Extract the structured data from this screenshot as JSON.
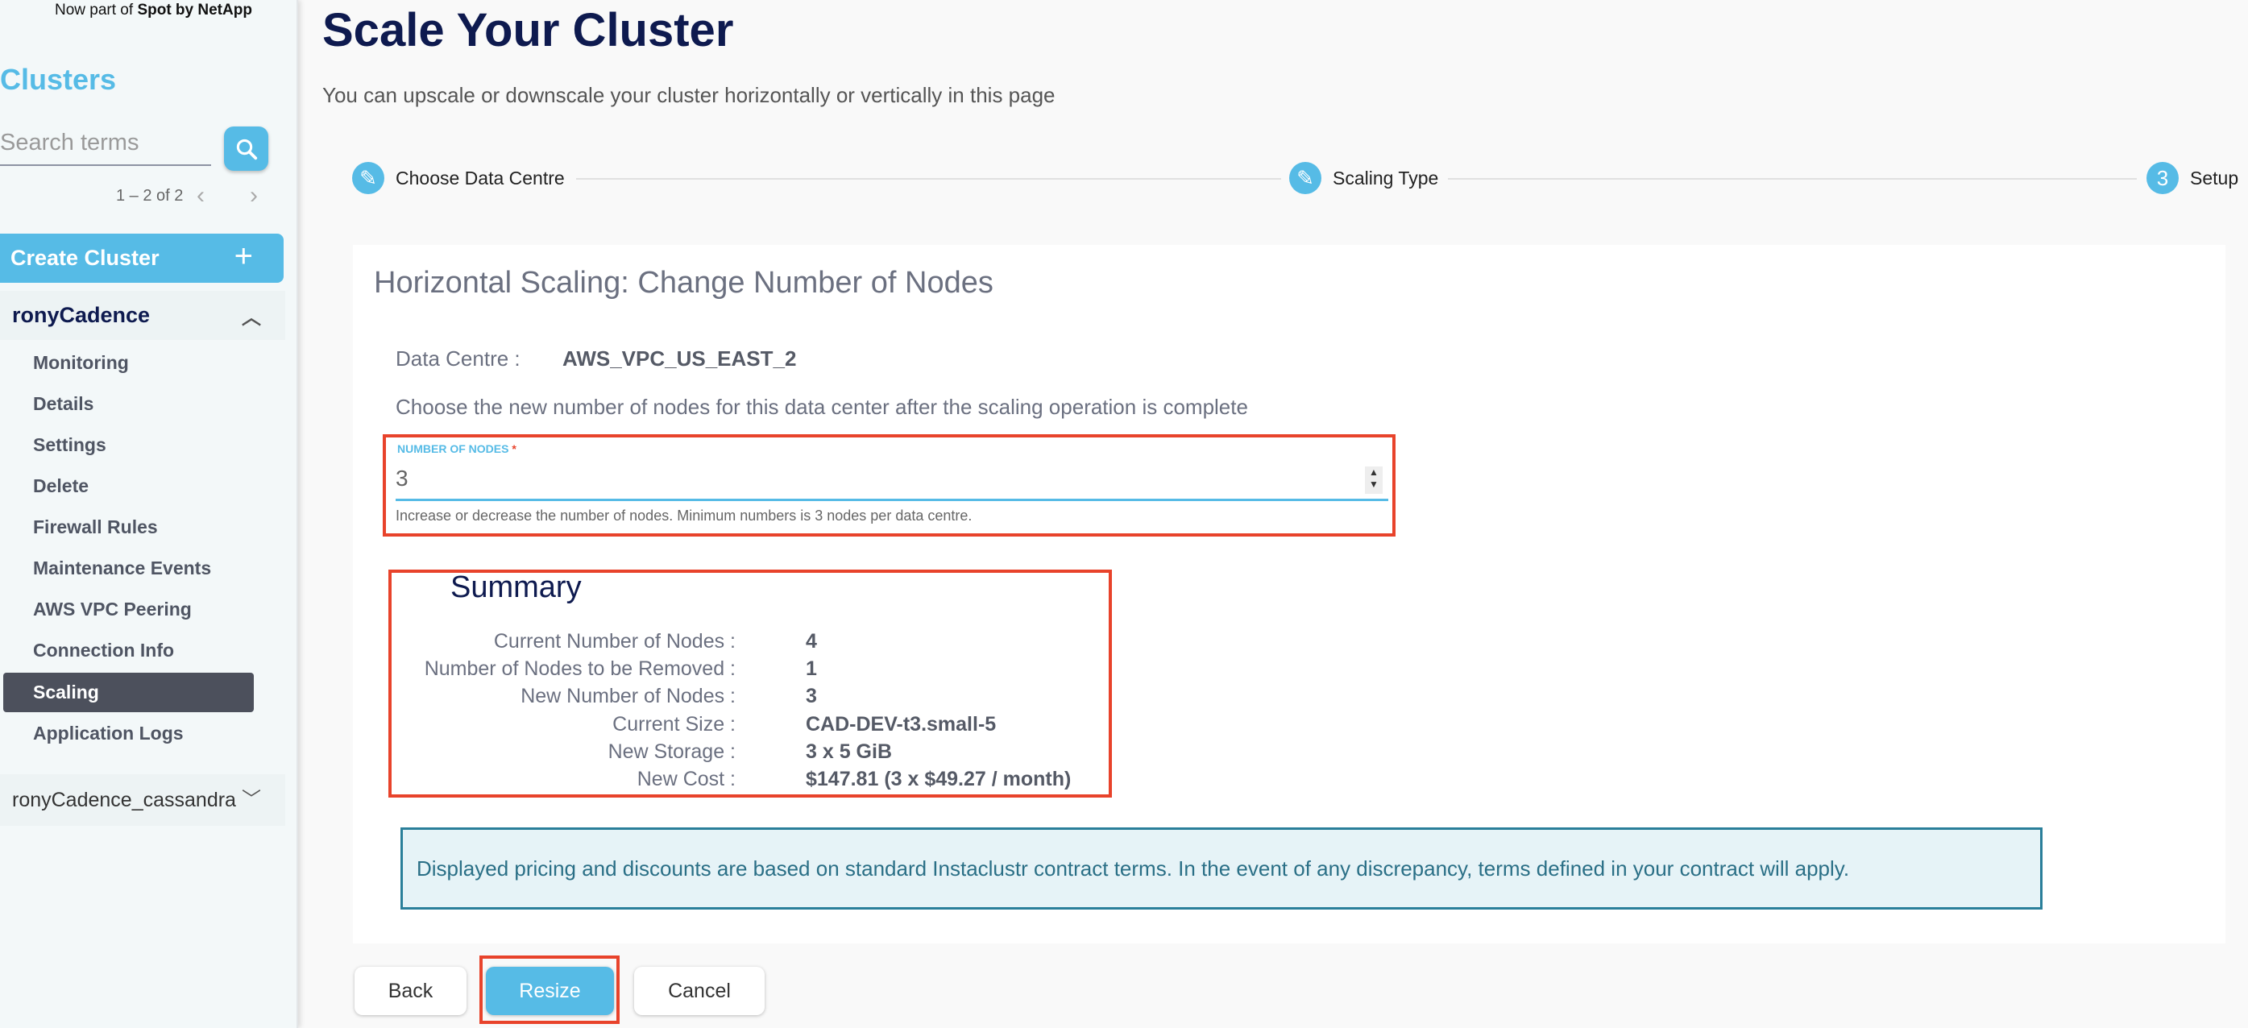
{
  "sidebar": {
    "brand_prefix": "Now part of",
    "brand_name": "Spot by NetApp",
    "section_title": "Clusters",
    "search_placeholder": "Search terms",
    "pagination": "1 – 2 of 2",
    "create_cluster_label": "Create Cluster",
    "clusters": [
      {
        "name": "ronyCadence",
        "expanded": true,
        "items": [
          "Monitoring",
          "Details",
          "Settings",
          "Delete",
          "Firewall Rules",
          "Maintenance Events",
          "AWS VPC Peering",
          "Connection Info",
          "Scaling",
          "Application Logs"
        ],
        "active_item": "Scaling"
      },
      {
        "name": "ronyCadence_cassandra",
        "expanded": false
      }
    ]
  },
  "page": {
    "title": "Scale Your Cluster",
    "subtitle": "You can upscale or downscale your cluster horizontally or vertically in this page"
  },
  "stepper": [
    {
      "label": "Choose Data Centre",
      "icon": "pencil-icon"
    },
    {
      "label": "Scaling Type",
      "icon": "pencil-icon"
    },
    {
      "label": "Setup",
      "number": "3"
    }
  ],
  "card": {
    "title": "Horizontal Scaling: Change Number of Nodes",
    "data_centre_label": "Data Centre :",
    "data_centre_value": "AWS_VPC_US_EAST_2",
    "instructions": "Choose the new number of nodes for this data center after the scaling operation is complete",
    "field_label": "NUMBER OF NODES",
    "field_required": "*",
    "field_value": "3",
    "field_hint": "Increase or decrease the number of nodes. Minimum numbers is 3 nodes per data centre.",
    "summary_title": "Summary",
    "summary": [
      {
        "label": "Current Number of Nodes :",
        "value": "4"
      },
      {
        "label": "Number of Nodes to be Removed :",
        "value": "1"
      },
      {
        "label": "New Number of Nodes :",
        "value": "3"
      },
      {
        "label": "Current Size :",
        "value": "CAD-DEV-t3.small-5"
      },
      {
        "label": "New Storage :",
        "value": "3 x 5 GiB"
      },
      {
        "label": "New Cost :",
        "value": "$147.81 (3 x $49.27 / month)"
      }
    ],
    "notice": "Displayed pricing and discounts are based on standard Instaclustr contract terms. In the event of any discrepancy, terms defined in your contract will apply."
  },
  "buttons": {
    "back": "Back",
    "resize": "Resize",
    "cancel": "Cancel"
  },
  "colors": {
    "accent": "#56bbe6",
    "navy": "#0e1a4f",
    "highlight": "#e8432b"
  }
}
